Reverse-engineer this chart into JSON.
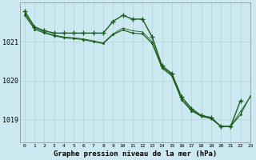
{
  "xlabel": "Graphe pression niveau de la mer (hPa)",
  "xlim": [
    -0.5,
    23
  ],
  "ylim": [
    1018.4,
    1022.0
  ],
  "yticks": [
    1019,
    1020,
    1021
  ],
  "bg_color": "#cce8f0",
  "grid_color": "#b0d4d4",
  "line_color": "#1a5c1a",
  "line1_x": [
    0,
    1,
    2,
    3,
    4,
    5,
    6,
    7,
    8,
    9,
    10,
    11,
    12,
    13,
    14,
    15,
    16,
    17,
    18,
    19,
    20,
    21,
    22
  ],
  "line1_y": [
    1021.78,
    1021.38,
    1021.28,
    1021.22,
    1021.22,
    1021.22,
    1021.22,
    1021.22,
    1021.22,
    1021.52,
    1021.68,
    1021.58,
    1021.58,
    1021.12,
    1020.38,
    1020.18,
    1019.58,
    1019.28,
    1019.1,
    1019.05,
    1018.82,
    1018.82,
    1019.48
  ],
  "line2_x": [
    0,
    1,
    2,
    3,
    4,
    5,
    6,
    7,
    8,
    9,
    10,
    11,
    12,
    13,
    14,
    15,
    16,
    17,
    18,
    19,
    20,
    21,
    22,
    23
  ],
  "line2_y": [
    1021.68,
    1021.32,
    1021.22,
    1021.15,
    1021.1,
    1021.08,
    1021.05,
    1021.0,
    1020.95,
    1021.18,
    1021.3,
    1021.22,
    1021.2,
    1020.95,
    1020.32,
    1020.12,
    1019.5,
    1019.22,
    1019.08,
    1019.02,
    1018.82,
    1018.82,
    1019.12,
    1019.6
  ],
  "line3_x": [
    0,
    1,
    2,
    3,
    4,
    5,
    6,
    7,
    8,
    9,
    10,
    11,
    12,
    13,
    14,
    15,
    16,
    17,
    18,
    19,
    20,
    21,
    22,
    23
  ],
  "line3_y": [
    1021.72,
    1021.35,
    1021.25,
    1021.17,
    1021.12,
    1021.1,
    1021.07,
    1021.02,
    1020.97,
    1021.2,
    1021.35,
    1021.28,
    1021.25,
    1021.0,
    1020.35,
    1020.15,
    1019.52,
    1019.25,
    1019.09,
    1019.03,
    1018.82,
    1018.82,
    1019.2,
    1019.58
  ]
}
